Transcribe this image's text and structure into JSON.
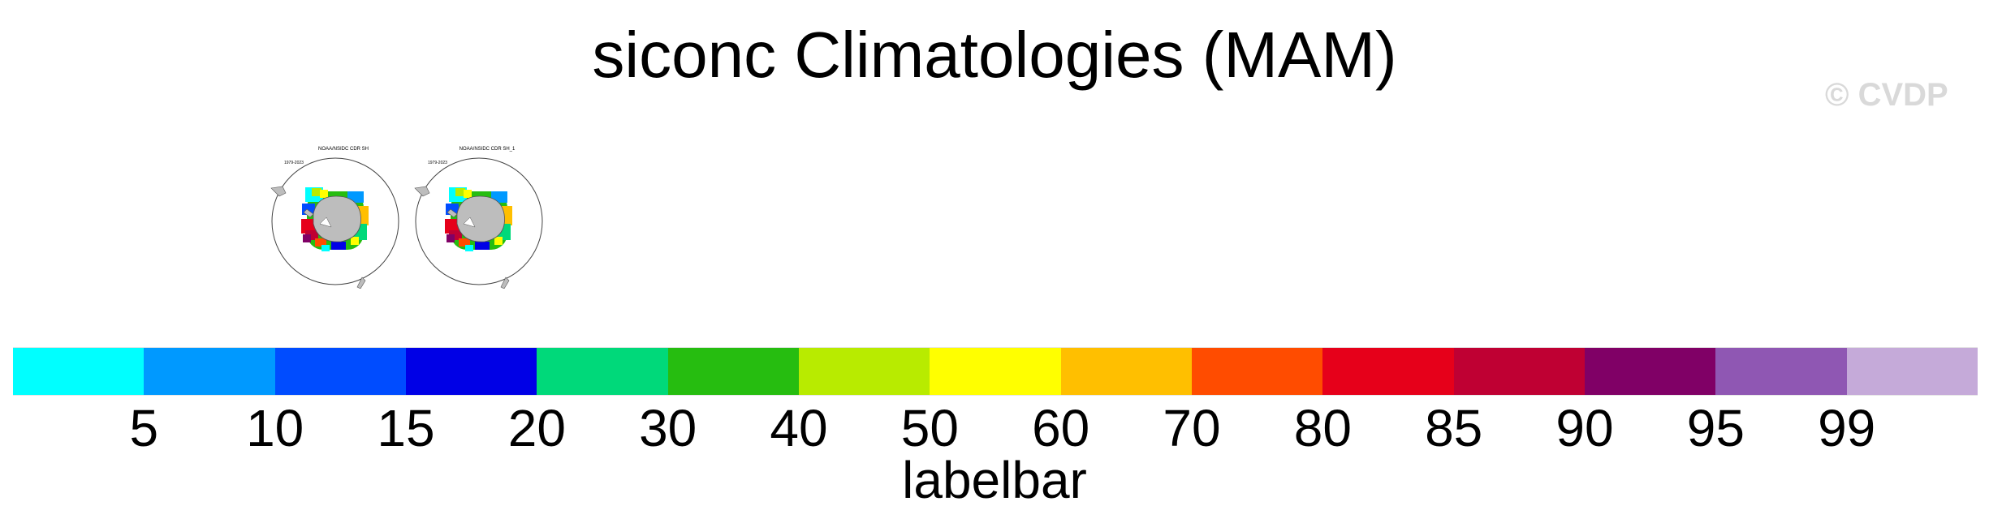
{
  "title": "siconc Climatologies (MAM)",
  "watermark": "© CVDP",
  "panels": [
    {
      "name": "NOAA/NSIDC CDR SH",
      "years": "1979-2023"
    },
    {
      "name": "NOAA/NSIDC CDR SH_1",
      "years": "1979-2023"
    }
  ],
  "labelbar": {
    "title": "labelbar",
    "colors": [
      "#00ffff",
      "#0099ff",
      "#004cff",
      "#0000e6",
      "#00d97a",
      "#26bd10",
      "#b8eb00",
      "#ffff00",
      "#ffbf00",
      "#ff4c00",
      "#e6001a",
      "#bf0033",
      "#800066",
      "#8f57b3",
      "#c5aad9"
    ],
    "ticks": [
      "5",
      "10",
      "15",
      "20",
      "30",
      "40",
      "50",
      "60",
      "70",
      "80",
      "85",
      "90",
      "95",
      "99"
    ]
  }
}
